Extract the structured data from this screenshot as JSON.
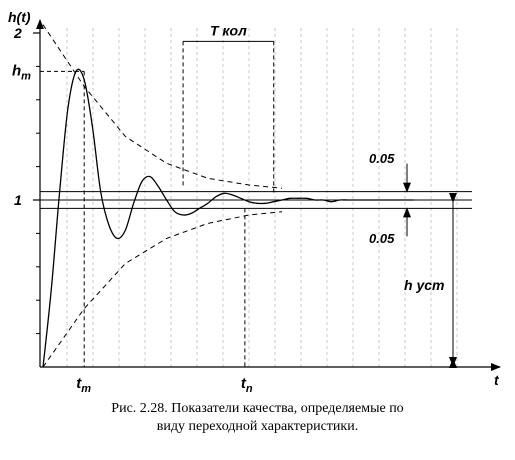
{
  "chart_data": {
    "type": "line",
    "title": "",
    "xlabel": "t",
    "ylabel": "h(t)",
    "xlim": [
      0,
      1
    ],
    "ylim": [
      0,
      2.2
    ],
    "yticks": [
      {
        "value": 2,
        "label": "2"
      },
      {
        "value": 1,
        "label": "1"
      }
    ],
    "series": [
      {
        "x": [
          0.0,
          0.02,
          0.04,
          0.06,
          0.08,
          0.1,
          0.12,
          0.14,
          0.16,
          0.18,
          0.2,
          0.22,
          0.24,
          0.26,
          0.28,
          0.3,
          0.32,
          0.34,
          0.36,
          0.38,
          0.4,
          0.42,
          0.44,
          0.46,
          0.48,
          0.5,
          0.52,
          0.54,
          0.56,
          0.58,
          0.6,
          0.62,
          0.64,
          0.66,
          0.68,
          0.7,
          0.72,
          0.74,
          0.76,
          0.78,
          0.8,
          0.82,
          0.84,
          0.86,
          0.88,
          0.9
        ],
        "y": [
          0.0,
          0.46,
          1.04,
          1.54,
          1.77,
          1.72,
          1.44,
          1.05,
          0.85,
          0.77,
          0.82,
          0.98,
          1.11,
          1.14,
          1.08,
          1.0,
          0.93,
          0.91,
          0.92,
          0.95,
          0.98,
          1.02,
          1.04,
          1.03,
          1.01,
          0.99,
          0.98,
          0.98,
          0.99,
          1.0,
          1.01,
          1.01,
          1.01,
          1.0,
          1.0,
          0.99,
          1.0,
          1.0,
          1.0,
          1.0,
          1.0,
          1.0,
          1.0,
          1.0,
          1.0,
          1.0
        ]
      }
    ],
    "envelope_upper": {
      "x": [
        0.0,
        0.1,
        0.2,
        0.3,
        0.4,
        0.5,
        0.58
      ],
      "y": [
        2.05,
        1.68,
        1.38,
        1.22,
        1.13,
        1.09,
        1.07
      ]
    },
    "envelope_lower": {
      "x": [
        0.0,
        0.1,
        0.2,
        0.3,
        0.4,
        0.5,
        0.58
      ],
      "y": [
        0.0,
        0.35,
        0.62,
        0.77,
        0.86,
        0.91,
        0.93
      ]
    },
    "tolerance_band": {
      "center": 1.0,
      "delta": 0.05
    },
    "peak": {
      "x": 0.1,
      "y": 1.77
    },
    "settling": {
      "x": 0.49
    },
    "period": {
      "x_start": 0.34,
      "x_end": 0.56,
      "y": 1.95
    },
    "annotations": {
      "hm_label": "h",
      "hm_sub": "m",
      "tm_label": "t",
      "tm_sub": "m",
      "tn_label": "t",
      "tn_sub": "n",
      "period_label": "T кол",
      "delta_top": "0.05",
      "delta_bottom": "0.05",
      "hsteady_label": "h уст"
    }
  },
  "caption": {
    "line1": "Рис. 2.28. Показатели качества, определяемые по",
    "line2": "виду переходной характеристики."
  }
}
